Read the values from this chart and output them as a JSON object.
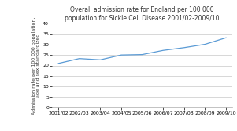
{
  "title": "Overall admission rate for England per 100 000\npopulation for Sickle Cell Disease 2001/02-2009/10",
  "ylabel": "Admission rate per 100 000 population,\nage and sex standardized",
  "x_labels": [
    "2001/02",
    "2002/03",
    "2003/04",
    "2004/05",
    "2005/06",
    "2006/07",
    "2007/08",
    "2008/09",
    "2009/10"
  ],
  "y_main": [
    21.0,
    23.3,
    22.7,
    25.0,
    25.2,
    27.2,
    28.5,
    30.1,
    33.2
  ],
  "line_color": "#5b9bd5",
  "background_color": "#ffffff",
  "grid_color": "#c8c8c8",
  "ylim": [
    0,
    40
  ],
  "yticks": [
    0,
    5,
    10,
    15,
    20,
    25,
    30,
    35,
    40
  ],
  "title_fontsize": 5.5,
  "label_fontsize": 4.5,
  "tick_fontsize": 4.5,
  "line_width": 0.9
}
